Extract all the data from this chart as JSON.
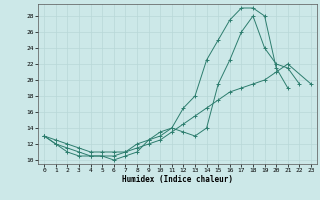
{
  "xlabel": "Humidex (Indice chaleur)",
  "bg_color": "#cce8e8",
  "line_color": "#2d7d6e",
  "grid_color": "#b8d8d8",
  "xlim": [
    -0.5,
    23.5
  ],
  "ylim": [
    9.5,
    29.5
  ],
  "xticks": [
    0,
    1,
    2,
    3,
    4,
    5,
    6,
    7,
    8,
    9,
    10,
    11,
    12,
    13,
    14,
    15,
    16,
    17,
    18,
    19,
    20,
    21,
    22,
    23
  ],
  "yticks": [
    10,
    12,
    14,
    16,
    18,
    20,
    22,
    24,
    26,
    28
  ],
  "line1": {
    "x": [
      0,
      1,
      2,
      3,
      4,
      5,
      6,
      7,
      8,
      9,
      10,
      11,
      12,
      13,
      14,
      15,
      16,
      17,
      18,
      19,
      20,
      21
    ],
    "y": [
      13,
      12,
      11,
      10.5,
      10.5,
      10.5,
      10,
      10.5,
      11,
      12.5,
      13,
      14,
      16.5,
      18,
      22.5,
      25,
      27.5,
      29,
      29,
      28,
      21.5,
      19
    ]
  },
  "line2": {
    "x": [
      0,
      1,
      2,
      3,
      4,
      5,
      6,
      7,
      8,
      9,
      10,
      11,
      12,
      13,
      14,
      15,
      16,
      17,
      18,
      19,
      20,
      21,
      22
    ],
    "y": [
      13,
      12,
      11.5,
      11,
      10.5,
      10.5,
      10.5,
      11,
      12,
      12.5,
      13.5,
      14,
      13.5,
      13,
      14,
      19.5,
      22.5,
      26,
      28,
      24,
      22,
      21.5,
      19.5
    ]
  },
  "line3": {
    "x": [
      0,
      1,
      2,
      3,
      4,
      5,
      6,
      7,
      8,
      9,
      10,
      11,
      12,
      13,
      14,
      15,
      16,
      17,
      18,
      19,
      20,
      21,
      23
    ],
    "y": [
      13,
      12.5,
      12,
      11.5,
      11,
      11,
      11,
      11,
      11.5,
      12,
      12.5,
      13.5,
      14.5,
      15.5,
      16.5,
      17.5,
      18.5,
      19,
      19.5,
      20,
      21,
      22,
      19.5
    ]
  }
}
